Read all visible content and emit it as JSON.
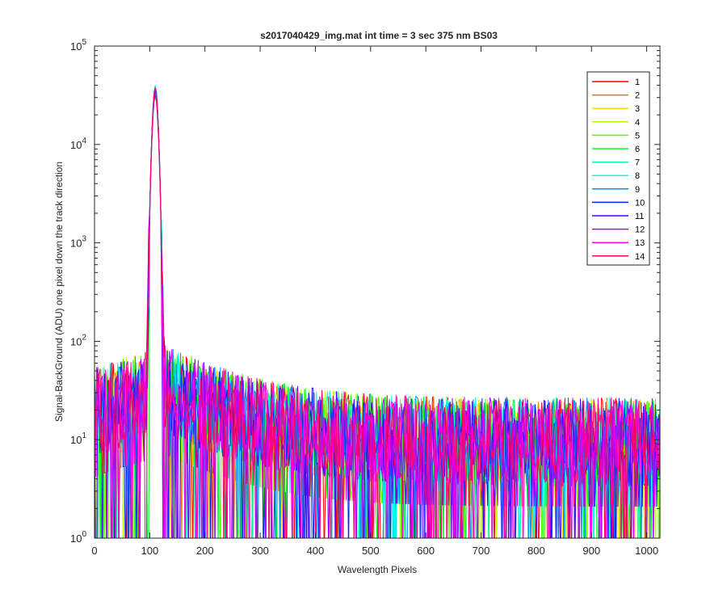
{
  "chart_data": {
    "type": "line",
    "title": "s2017040429_img.mat int time = 3 sec  375 nm BS03",
    "xlabel": "Wavelength Pixels",
    "ylabel": "Signal-BackGround (ADU) one pixel down the track direction",
    "xlim": [
      0,
      1024
    ],
    "ylim": [
      1,
      100000
    ],
    "yscale": "log",
    "grid": false,
    "legend_position": "top-right",
    "x_ticks": [
      {
        "value": 0,
        "label": "0"
      },
      {
        "value": 100,
        "label": "100"
      },
      {
        "value": 200,
        "label": "200"
      },
      {
        "value": 300,
        "label": "300"
      },
      {
        "value": 400,
        "label": "400"
      },
      {
        "value": 500,
        "label": "500"
      },
      {
        "value": 600,
        "label": "600"
      },
      {
        "value": 700,
        "label": "700"
      },
      {
        "value": 800,
        "label": "800"
      },
      {
        "value": 900,
        "label": "900"
      },
      {
        "value": 1000,
        "label": "1000"
      }
    ],
    "y_ticks": [
      {
        "value": 1,
        "base": "10",
        "exp": "0"
      },
      {
        "value": 10,
        "base": "10",
        "exp": "1"
      },
      {
        "value": 100,
        "base": "10",
        "exp": "2"
      },
      {
        "value": 1000,
        "base": "10",
        "exp": "3"
      },
      {
        "value": 10000,
        "base": "10",
        "exp": "4"
      },
      {
        "value": 100000,
        "base": "10",
        "exp": "5"
      }
    ],
    "peak": {
      "x": 110,
      "y": 35000
    },
    "noise_floor_typical": 15,
    "series": [
      {
        "name": "1",
        "color": "#ff0000"
      },
      {
        "name": "2",
        "color": "#ff6e00"
      },
      {
        "name": "3",
        "color": "#ffdc00"
      },
      {
        "name": "4",
        "color": "#b6ff00"
      },
      {
        "name": "5",
        "color": "#49ff00"
      },
      {
        "name": "6",
        "color": "#00ff24"
      },
      {
        "name": "7",
        "color": "#00ff92"
      },
      {
        "name": "8",
        "color": "#00ffff"
      },
      {
        "name": "9",
        "color": "#0092ff"
      },
      {
        "name": "10",
        "color": "#0024ff"
      },
      {
        "name": "11",
        "color": "#4900ff"
      },
      {
        "name": "12",
        "color": "#b600ff"
      },
      {
        "name": "13",
        "color": "#ff00dc"
      },
      {
        "name": "14",
        "color": "#ff006e"
      }
    ]
  }
}
